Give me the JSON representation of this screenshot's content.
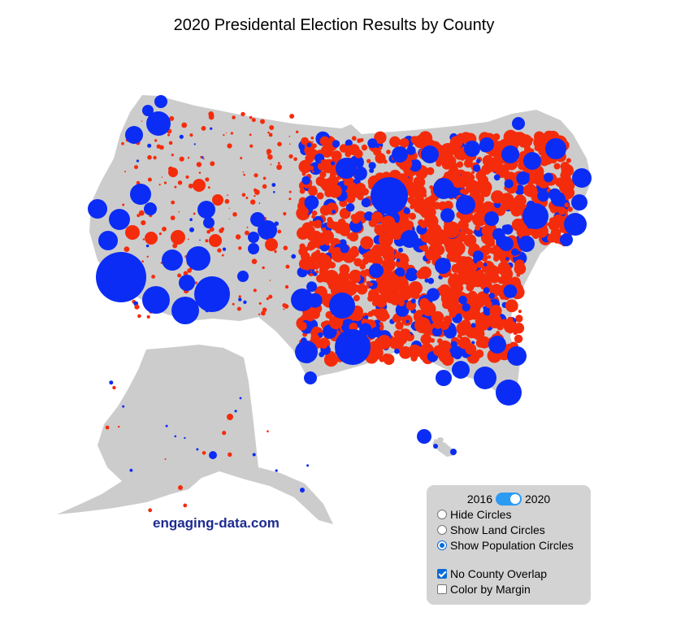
{
  "title": "2020 Presidental Election Results by County",
  "watermark": "engaging-data.com",
  "colors": {
    "democrat": "#0b2cf5",
    "republican": "#f42c0c",
    "land": "#cccccc",
    "panel": "#d3d3d3",
    "toggle": "#2c9cf3"
  },
  "controls": {
    "year_left": "2016",
    "year_right": "2020",
    "selected_year": "2020",
    "circle_options": [
      {
        "label": "Hide Circles",
        "selected": false
      },
      {
        "label": "Show Land Circles",
        "selected": false
      },
      {
        "label": "Show Population Circles",
        "selected": true
      }
    ],
    "checkboxes": [
      {
        "label": "No County Overlap",
        "checked": true
      },
      {
        "label": "Color by Margin",
        "checked": false
      }
    ]
  }
}
